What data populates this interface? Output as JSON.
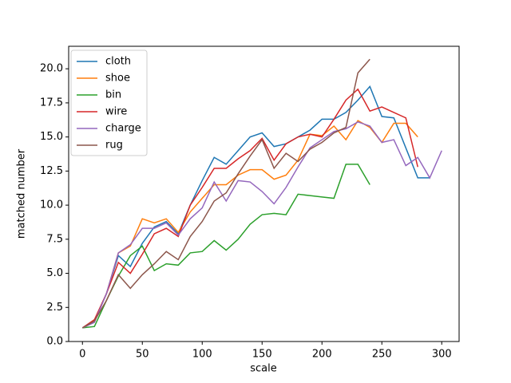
{
  "chart_data": {
    "type": "line",
    "xlabel": "scale",
    "ylabel": "matched number",
    "x": [
      0,
      10,
      20,
      30,
      40,
      50,
      60,
      70,
      80,
      90,
      100,
      110,
      120,
      130,
      140,
      150,
      160,
      170,
      180,
      190,
      200,
      210,
      220,
      230,
      240,
      250,
      260,
      270,
      280,
      290,
      300
    ],
    "series": [
      {
        "name": "cloth",
        "color": "#1f77b4",
        "values": [
          1,
          1.5,
          3.5,
          6.3,
          5.5,
          7.2,
          8.4,
          8.8,
          7.9,
          10,
          11.8,
          13.5,
          13,
          14,
          15,
          15.3,
          14.3,
          14.5,
          15,
          15.5,
          16.3,
          16.3,
          16.8,
          17.7,
          18.7,
          16.5,
          16.4,
          14.2,
          12,
          12,
          null
        ]
      },
      {
        "name": "shoe",
        "color": "#ff7f0e",
        "values": [
          1,
          1.5,
          3.5,
          6.5,
          7,
          9,
          8.7,
          9,
          8,
          9.5,
          10.5,
          11.5,
          11.5,
          12.2,
          12.6,
          12.6,
          11.9,
          12.2,
          13.3,
          15.2,
          15.1,
          15.8,
          14.8,
          16.2,
          15.7,
          14.6,
          16,
          16,
          15,
          null,
          null
        ]
      },
      {
        "name": "bin",
        "color": "#2ca02c",
        "values": [
          1,
          1.1,
          3,
          4.8,
          6.3,
          7,
          5.2,
          5.7,
          5.6,
          6.5,
          6.6,
          7.4,
          6.7,
          7.5,
          8.6,
          9.3,
          9.4,
          9.3,
          10.8,
          10.7,
          10.6,
          10.5,
          13,
          13,
          11.5,
          null,
          null,
          null,
          null,
          null,
          null
        ]
      },
      {
        "name": "wire",
        "color": "#d62728",
        "values": [
          1,
          1.6,
          3.5,
          5.8,
          5,
          6.4,
          7.9,
          8.3,
          7.7,
          10,
          11.3,
          12.7,
          12.7,
          13.4,
          14,
          14.9,
          13.3,
          14.5,
          15,
          15.2,
          15,
          16.3,
          17.7,
          18.5,
          16.9,
          17.2,
          16.8,
          16.4,
          12.8,
          null,
          null
        ]
      },
      {
        "name": "charge",
        "color": "#9467bd",
        "values": [
          1,
          1.4,
          3.5,
          6.5,
          7.1,
          8.3,
          8.3,
          8.7,
          7.8,
          9,
          9.8,
          11.7,
          10.3,
          11.8,
          11.7,
          11,
          10.1,
          11.3,
          12.8,
          14.2,
          14.8,
          15.4,
          15.6,
          16.1,
          15.8,
          14.6,
          14.8,
          12.9,
          13.5,
          12,
          14
        ]
      },
      {
        "name": "rug",
        "color": "#8c564b",
        "values": [
          1,
          1.5,
          3,
          4.9,
          3.9,
          4.9,
          5.7,
          6.6,
          6,
          7.7,
          8.8,
          10.3,
          10.9,
          12.3,
          13.6,
          14.8,
          12.7,
          13.8,
          13.2,
          14.1,
          14.6,
          15.3,
          15.7,
          19.7,
          20.7,
          null,
          null,
          null,
          null,
          null,
          null
        ]
      }
    ],
    "xlim": [
      -11.5,
      314.5
    ],
    "xticks": [
      0,
      50,
      100,
      150,
      200,
      250,
      300
    ],
    "ylim": [
      0,
      21.65
    ],
    "yticks": [
      {
        "value": 0,
        "label": "0.0"
      },
      {
        "value": 2.5,
        "label": "2.5"
      },
      {
        "value": 5,
        "label": "5.0"
      },
      {
        "value": 7.5,
        "label": "7.5"
      },
      {
        "value": 10,
        "label": "10.0"
      },
      {
        "value": 12.5,
        "label": "12.5"
      },
      {
        "value": 15,
        "label": "15.0"
      },
      {
        "value": 17.5,
        "label": "17.5"
      },
      {
        "value": 20,
        "label": "20.0"
      }
    ],
    "legend": "upper left"
  }
}
